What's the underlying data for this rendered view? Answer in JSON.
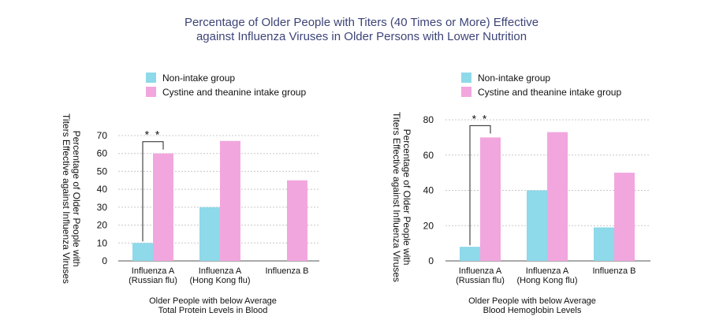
{
  "title": {
    "line1": "Percentage of Older People with Titers (40 Times or More) Effective",
    "line2": "against Influenza Viruses in Older Persons with Lower Nutrition"
  },
  "colors": {
    "title": "#3d4478",
    "non_intake": "#8ed9ea",
    "intake": "#f2a6de",
    "grid": "#c8c8c8"
  },
  "chart_data": [
    {
      "type": "bar",
      "categories": [
        [
          "Influenza A",
          "(Russian flu)"
        ],
        [
          "Influenza A",
          "(Hong Kong flu)"
        ],
        [
          "Influenza B"
        ]
      ],
      "series": [
        {
          "name": "Non-intake group",
          "values": [
            10,
            30,
            0
          ]
        },
        {
          "name": "Cystine and theanine intake group",
          "values": [
            60,
            67,
            45
          ]
        }
      ],
      "ylabel": [
        "Percentage of Older People with",
        "Titers Effective against Influenza Viruses"
      ],
      "xlabel": [
        "Older People with below Average",
        "Total Protein Levels in Blood"
      ],
      "yticks": [
        0,
        10,
        20,
        30,
        40,
        50,
        60,
        70
      ],
      "ylim": [
        0,
        80
      ],
      "significance": {
        "label": "* *",
        "category_index": 0
      },
      "grid": "dashed horizontal",
      "legend": "top"
    },
    {
      "type": "bar",
      "categories": [
        [
          "Influenza A",
          "(Russian flu)"
        ],
        [
          "Influenza A",
          "(Hong Kong flu)"
        ],
        [
          "Influenza B"
        ]
      ],
      "series": [
        {
          "name": "Non-intake group",
          "values": [
            8,
            40,
            19
          ]
        },
        {
          "name": "Cystine and theanine intake group",
          "values": [
            70,
            73,
            50
          ]
        }
      ],
      "ylabel": [
        "Percentage of Older People with",
        "Titers Effective against Influenza Viruses"
      ],
      "xlabel": [
        "Older People with below Average",
        "Blood Hemoglobin Levels"
      ],
      "yticks": [
        0,
        20,
        40,
        60,
        80
      ],
      "ylim": [
        0,
        85
      ],
      "significance": {
        "label": "* *",
        "category_index": 0
      },
      "grid": "dashed horizontal",
      "legend": "top"
    }
  ]
}
